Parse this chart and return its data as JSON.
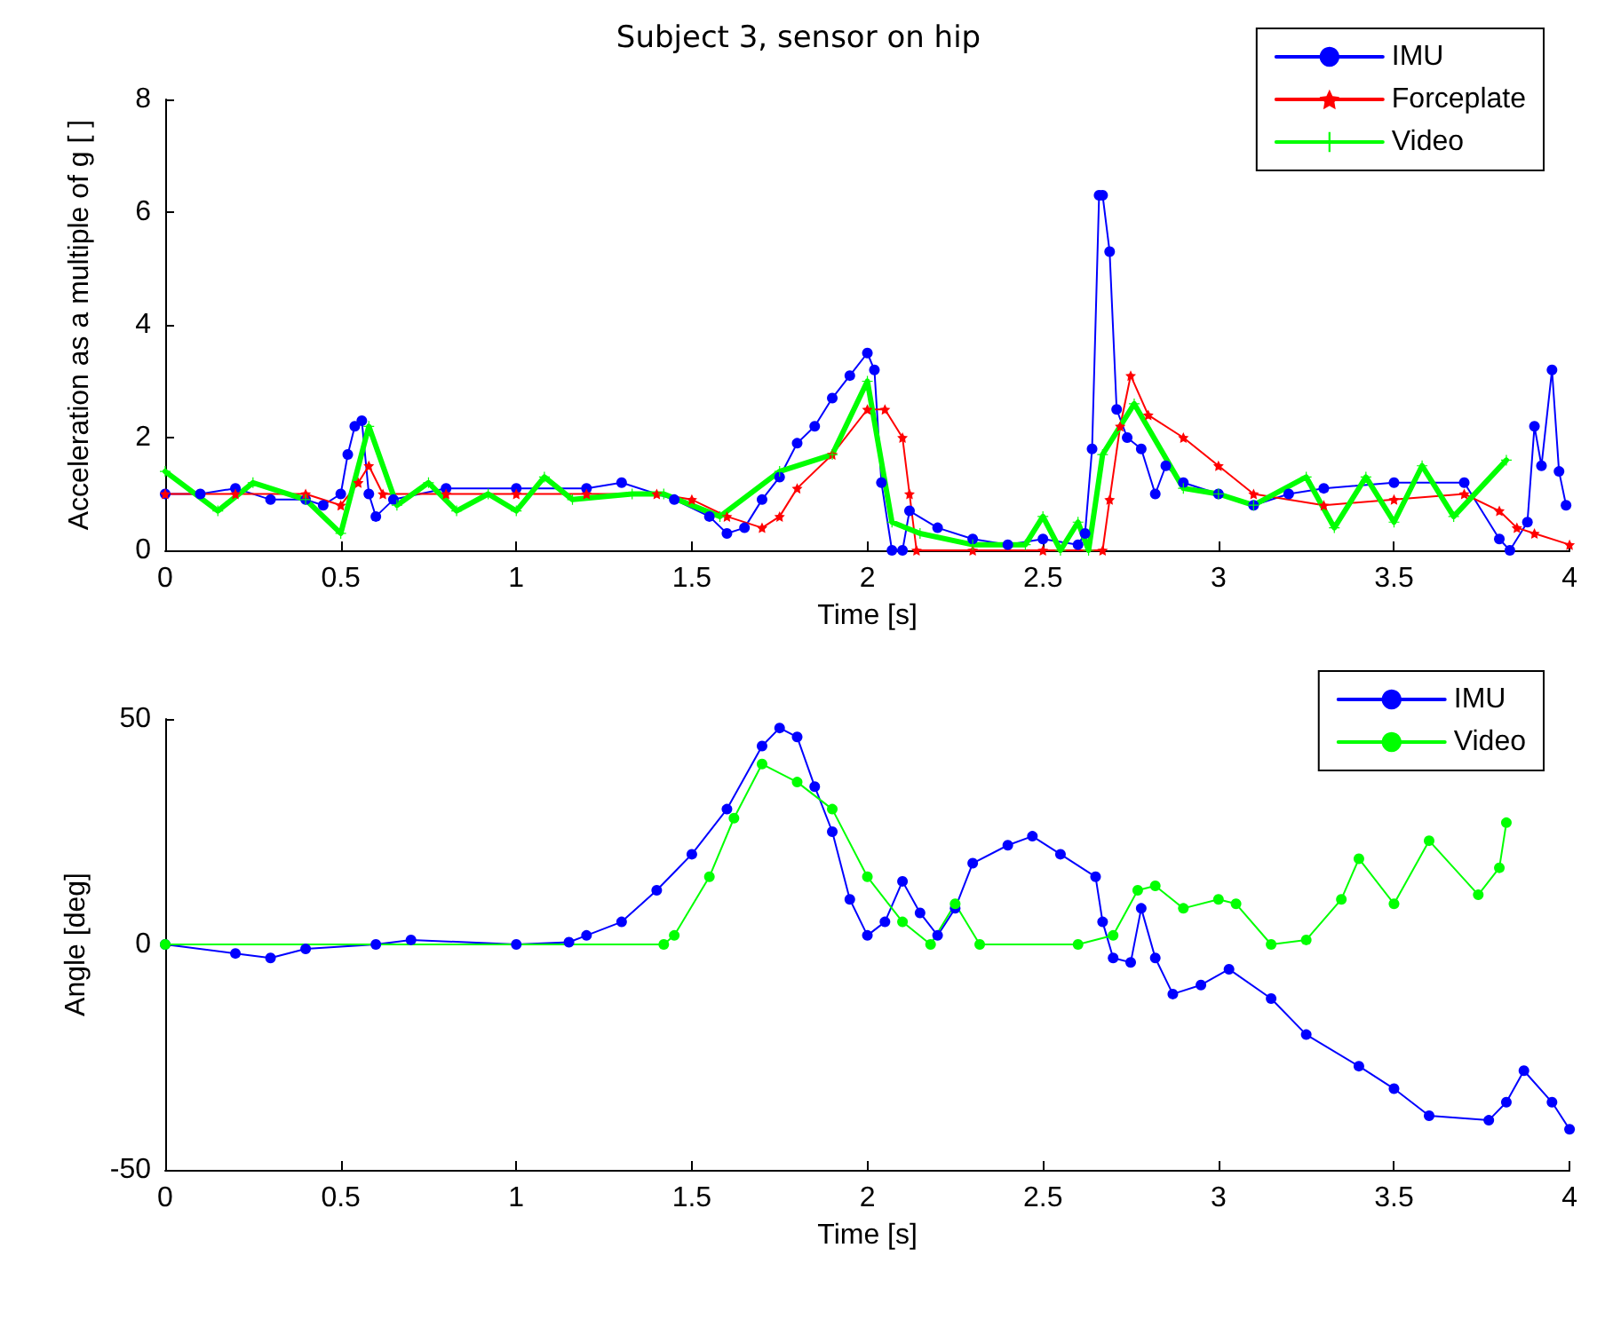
{
  "chart_data": [
    {
      "type": "line",
      "title": "Subject 3, sensor on hip",
      "xlabel": "Time [s]",
      "ylabel": "Acceleration as a multiple of g [ ]",
      "xlim": [
        0,
        4
      ],
      "xticks": [
        0,
        0.5,
        1,
        1.5,
        2,
        2.5,
        3,
        3.5,
        4
      ],
      "ylim": [
        0,
        8
      ],
      "yticks": [
        0,
        2,
        4,
        6,
        8
      ],
      "grid": false,
      "legend": "top right",
      "series": [
        {
          "name": "IMU",
          "color": "#0000ff",
          "marker": "circle",
          "x": [
            0,
            0.1,
            0.2,
            0.3,
            0.4,
            0.45,
            0.5,
            0.52,
            0.54,
            0.56,
            0.58,
            0.6,
            0.65,
            0.8,
            1.0,
            1.2,
            1.3,
            1.45,
            1.55,
            1.6,
            1.65,
            1.7,
            1.75,
            1.8,
            1.85,
            1.9,
            1.95,
            2.0,
            2.02,
            2.04,
            2.07,
            2.1,
            2.12,
            2.2,
            2.3,
            2.4,
            2.5,
            2.6,
            2.62,
            2.64,
            2.66,
            2.67,
            2.69,
            2.71,
            2.74,
            2.78,
            2.82,
            2.85,
            2.9,
            3.0,
            3.1,
            3.2,
            3.3,
            3.5,
            3.7,
            3.8,
            3.83,
            3.88,
            3.9,
            3.92,
            3.95,
            3.97,
            3.99
          ],
          "values": [
            1.0,
            1.0,
            1.1,
            0.9,
            0.9,
            0.8,
            1.0,
            1.7,
            2.2,
            2.3,
            1.0,
            0.6,
            0.9,
            1.1,
            1.1,
            1.1,
            1.2,
            0.9,
            0.6,
            0.3,
            0.4,
            0.9,
            1.3,
            1.9,
            2.2,
            2.7,
            3.1,
            3.5,
            3.2,
            1.2,
            0.0,
            0.0,
            0.7,
            0.4,
            0.2,
            0.1,
            0.2,
            0.1,
            0.3,
            1.8,
            6.3,
            6.3,
            5.3,
            2.5,
            2.0,
            1.8,
            1.0,
            1.5,
            1.2,
            1.0,
            0.8,
            1.0,
            1.1,
            1.2,
            1.2,
            0.2,
            0.0,
            0.5,
            2.2,
            1.5,
            3.2,
            1.4,
            0.8
          ]
        },
        {
          "name": "Forceplate",
          "color": "#ff0000",
          "marker": "star",
          "x": [
            0,
            0.2,
            0.4,
            0.5,
            0.55,
            0.58,
            0.62,
            0.8,
            1.0,
            1.2,
            1.4,
            1.5,
            1.6,
            1.7,
            1.75,
            1.8,
            1.9,
            2.0,
            2.05,
            2.1,
            2.12,
            2.14,
            2.3,
            2.5,
            2.67,
            2.69,
            2.72,
            2.75,
            2.8,
            2.9,
            3.0,
            3.1,
            3.3,
            3.5,
            3.7,
            3.8,
            3.85,
            3.9,
            4.0
          ],
          "values": [
            1.0,
            1.0,
            1.0,
            0.8,
            1.2,
            1.5,
            1.0,
            1.0,
            1.0,
            1.0,
            1.0,
            0.9,
            0.6,
            0.4,
            0.6,
            1.1,
            1.7,
            2.5,
            2.5,
            2.0,
            1.0,
            0.0,
            0.0,
            0.0,
            0.0,
            0.9,
            2.2,
            3.1,
            2.4,
            2.0,
            1.5,
            1.0,
            0.8,
            0.9,
            1.0,
            0.7,
            0.4,
            0.3,
            0.1
          ]
        },
        {
          "name": "Video",
          "color": "#00ff00",
          "marker": "cross",
          "x": [
            0,
            0.15,
            0.25,
            0.4,
            0.5,
            0.58,
            0.66,
            0.75,
            0.83,
            0.92,
            1.0,
            1.08,
            1.16,
            1.33,
            1.42,
            1.58,
            1.75,
            1.9,
            2.0,
            2.07,
            2.15,
            2.3,
            2.45,
            2.5,
            2.55,
            2.6,
            2.63,
            2.67,
            2.76,
            2.9,
            3.0,
            3.1,
            3.25,
            3.33,
            3.42,
            3.5,
            3.58,
            3.67,
            3.82
          ],
          "values": [
            1.4,
            0.7,
            1.2,
            0.9,
            0.3,
            2.2,
            0.8,
            1.2,
            0.7,
            1.0,
            0.7,
            1.3,
            0.9,
            1.0,
            1.0,
            0.6,
            1.4,
            1.7,
            3.0,
            0.5,
            0.3,
            0.1,
            0.1,
            0.6,
            0.0,
            0.5,
            0.0,
            1.7,
            2.6,
            1.1,
            1.0,
            0.8,
            1.3,
            0.4,
            1.3,
            0.5,
            1.5,
            0.6,
            1.6
          ]
        }
      ]
    },
    {
      "type": "line",
      "xlabel": "Time [s]",
      "ylabel": "Angle [deg]",
      "xlim": [
        0,
        4
      ],
      "xticks": [
        0,
        0.5,
        1,
        1.5,
        2,
        2.5,
        3,
        3.5,
        4
      ],
      "ylim": [
        -50,
        50
      ],
      "yticks": [
        -50,
        0,
        50
      ],
      "grid": false,
      "legend": "top right",
      "series": [
        {
          "name": "IMU",
          "color": "#0000ff",
          "marker": "circle",
          "x": [
            0,
            0.2,
            0.3,
            0.4,
            0.6,
            0.7,
            1.0,
            1.15,
            1.2,
            1.3,
            1.4,
            1.5,
            1.6,
            1.7,
            1.75,
            1.8,
            1.85,
            1.9,
            1.95,
            2.0,
            2.05,
            2.1,
            2.15,
            2.2,
            2.25,
            2.3,
            2.4,
            2.47,
            2.55,
            2.65,
            2.67,
            2.7,
            2.75,
            2.78,
            2.82,
            2.87,
            2.95,
            3.03,
            3.15,
            3.25,
            3.4,
            3.5,
            3.6,
            3.77,
            3.82,
            3.87,
            3.95,
            4.0
          ],
          "values": [
            0,
            -2,
            -3,
            -1,
            0,
            1,
            0,
            0.5,
            2,
            5,
            12,
            20,
            30,
            44,
            48,
            46,
            35,
            25,
            10,
            2,
            5,
            14,
            7,
            2,
            8,
            18,
            22,
            24,
            20,
            15,
            5,
            -3,
            -4,
            8,
            -3,
            -11,
            -9,
            -5.5,
            -12,
            -20,
            -27,
            -32,
            -38,
            -39,
            -35,
            -28,
            -35,
            -41
          ]
        },
        {
          "name": "Video",
          "color": "#00ff00",
          "marker": "circle",
          "x": [
            0,
            1.42,
            1.45,
            1.55,
            1.62,
            1.7,
            1.8,
            1.9,
            2.0,
            2.1,
            2.18,
            2.25,
            2.32,
            2.6,
            2.7,
            2.77,
            2.82,
            2.9,
            3.0,
            3.05,
            3.15,
            3.25,
            3.35,
            3.4,
            3.5,
            3.6,
            3.74,
            3.8,
            3.82
          ],
          "values": [
            0,
            0,
            2,
            15,
            28,
            40,
            36,
            30,
            15,
            5,
            0,
            9,
            0,
            0,
            2,
            12,
            13,
            8,
            10,
            9,
            0,
            1,
            10,
            19,
            9,
            23,
            11,
            17,
            27
          ]
        }
      ]
    }
  ]
}
